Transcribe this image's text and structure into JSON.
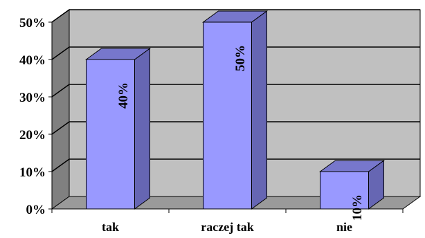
{
  "chart_data": {
    "type": "bar",
    "categories": [
      "tak",
      "raczej tak",
      "nie"
    ],
    "values": [
      40,
      50,
      10
    ],
    "data_labels": [
      "40%",
      "50%",
      "10%"
    ],
    "ylim": [
      0,
      50
    ],
    "yticks": [
      0,
      10,
      20,
      30,
      40,
      50
    ],
    "ytick_labels": [
      "0%",
      "10%",
      "20%",
      "30%",
      "40%",
      "50%"
    ],
    "grid": true,
    "legend": "none",
    "three_d": true
  },
  "colors": {
    "bar_front": "#9999ff",
    "bar_side": "#6666b3",
    "bar_top": "#7777cc",
    "plot_back": "#c0c0c0",
    "plot_side": "#808080",
    "floor": "#9a9a9a",
    "gridline": "#000000",
    "outline": "#000000"
  }
}
